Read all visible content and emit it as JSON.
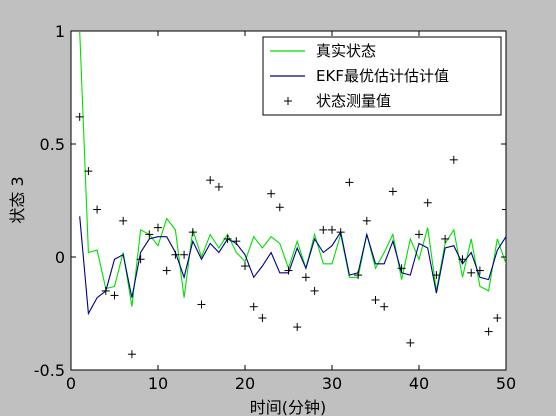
{
  "chart_data": {
    "type": "line",
    "xlabel": "时间(分钟)",
    "ylabel": "状态 3",
    "xlim": [
      0,
      50
    ],
    "ylim": [
      -0.5,
      1
    ],
    "xticks": [
      0,
      10,
      20,
      30,
      40,
      50
    ],
    "yticks": [
      -0.5,
      0,
      0.5,
      1
    ],
    "ytick_labels": [
      "-0.5",
      "0",
      "0.5",
      "1"
    ],
    "grid": false,
    "legend_position": "top-right",
    "colors": {
      "true": "#00e000",
      "ekf": "#00008b",
      "meas": "#000000",
      "background": "#c0c0c0",
      "axes": "#ffffff"
    },
    "x": [
      1,
      2,
      3,
      4,
      5,
      6,
      7,
      8,
      9,
      10,
      11,
      12,
      13,
      14,
      15,
      16,
      17,
      18,
      19,
      20,
      21,
      22,
      23,
      24,
      25,
      26,
      27,
      28,
      29,
      30,
      31,
      32,
      33,
      34,
      35,
      36,
      37,
      38,
      39,
      40,
      41,
      42,
      43,
      44,
      45,
      46,
      47,
      48,
      49,
      50
    ],
    "series": [
      {
        "name": "真实状态",
        "style": "line",
        "color": "#00e000",
        "values": [
          1.0,
          0.02,
          0.03,
          -0.14,
          -0.13,
          0.02,
          -0.22,
          0.12,
          0.1,
          0.05,
          0.17,
          0.12,
          -0.18,
          0.12,
          0.0,
          0.1,
          0.04,
          0.1,
          0.02,
          -0.02,
          0.09,
          0.04,
          0.09,
          0.06,
          -0.05,
          0.07,
          -0.05,
          0.1,
          -0.03,
          -0.03,
          0.1,
          -0.09,
          -0.09,
          0.1,
          -0.05,
          0.02,
          0.1,
          -0.1,
          0.08,
          -0.01,
          0.13,
          -0.15,
          0.06,
          0.12,
          -0.09,
          0.08,
          -0.13,
          -0.15,
          0.08,
          -0.03
        ]
      },
      {
        "name": "EKF最优估计估计值",
        "style": "line",
        "color": "#00008b",
        "values": [
          0.18,
          -0.25,
          -0.18,
          -0.15,
          -0.01,
          0.01,
          -0.18,
          0.02,
          0.08,
          0.09,
          0.09,
          0.02,
          -0.09,
          0.07,
          -0.01,
          0.06,
          0.02,
          0.08,
          0.06,
          0.01,
          -0.09,
          -0.04,
          0.02,
          -0.07,
          -0.07,
          0.04,
          -0.05,
          0.08,
          0.02,
          0.05,
          0.11,
          -0.08,
          -0.07,
          0.1,
          -0.03,
          -0.03,
          0.07,
          -0.07,
          -0.08,
          0.06,
          0.04,
          -0.16,
          0.04,
          0.05,
          -0.03,
          0.02,
          -0.09,
          -0.1,
          0.03,
          0.09
        ]
      },
      {
        "name": "状态测量值",
        "style": "markers",
        "marker": "+",
        "color": "#000000",
        "values": [
          0.62,
          0.38,
          0.21,
          -0.15,
          -0.17,
          0.16,
          -0.43,
          -0.01,
          0.1,
          0.13,
          -0.06,
          0.01,
          0.01,
          0.11,
          -0.21,
          0.34,
          0.31,
          0.08,
          0.07,
          -0.04,
          -0.22,
          -0.27,
          0.28,
          0.22,
          -0.06,
          -0.31,
          -0.09,
          -0.15,
          0.12,
          0.12,
          0.11,
          0.33,
          -0.08,
          0.16,
          -0.19,
          -0.22,
          0.29,
          -0.05,
          -0.38,
          0.1,
          0.24,
          -0.08,
          0.08,
          0.43,
          -0.01,
          -0.07,
          -0.06,
          -0.33,
          -0.27,
          0.21
        ]
      }
    ]
  }
}
